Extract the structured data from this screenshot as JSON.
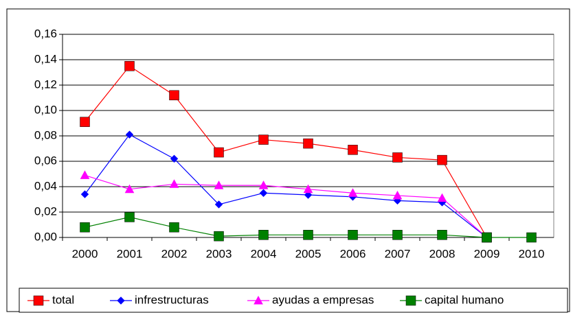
{
  "chart_data": {
    "type": "line",
    "categories": [
      "2000",
      "2001",
      "2002",
      "2003",
      "2004",
      "2005",
      "2006",
      "2007",
      "2008",
      "2009",
      "2010"
    ],
    "series": [
      {
        "name": "total",
        "color": "#ff0000",
        "marker": "square",
        "values": [
          0.091,
          0.135,
          0.112,
          0.067,
          0.077,
          0.074,
          0.069,
          0.063,
          0.061,
          0,
          null
        ]
      },
      {
        "name": "infrestructuras",
        "color": "#0000ff",
        "marker": "diamond",
        "values": [
          0.034,
          0.081,
          0.062,
          0.026,
          0.035,
          0.0335,
          0.032,
          0.029,
          0.0276,
          0,
          null
        ]
      },
      {
        "name": "ayudas a empresas",
        "color": "#ff00ff",
        "marker": "triangle",
        "values": [
          0.049,
          0.038,
          0.042,
          0.041,
          0.041,
          0.038,
          0.035,
          0.033,
          0.031,
          0,
          null
        ]
      },
      {
        "name": "capital humano",
        "color": "#008000",
        "marker": "square",
        "values": [
          0.008,
          0.016,
          0.008,
          0.001,
          0.002,
          0.002,
          0.002,
          0.002,
          0.002,
          0,
          0
        ]
      }
    ],
    "ylim": [
      0,
      0.16
    ],
    "yticks": [
      {
        "value": 0,
        "label": "0,00"
      },
      {
        "value": 0.02,
        "label": "0,02"
      },
      {
        "value": 0.04,
        "label": "0,04"
      },
      {
        "value": 0.06,
        "label": "0,06"
      },
      {
        "value": 0.08,
        "label": "0,08"
      },
      {
        "value": 0.1,
        "label": "0,10"
      },
      {
        "value": 0.12,
        "label": "0,12"
      },
      {
        "value": 0.14,
        "label": "0,14"
      },
      {
        "value": 0.16,
        "label": "0,16"
      }
    ],
    "grid": true,
    "legend": "bottom"
  }
}
